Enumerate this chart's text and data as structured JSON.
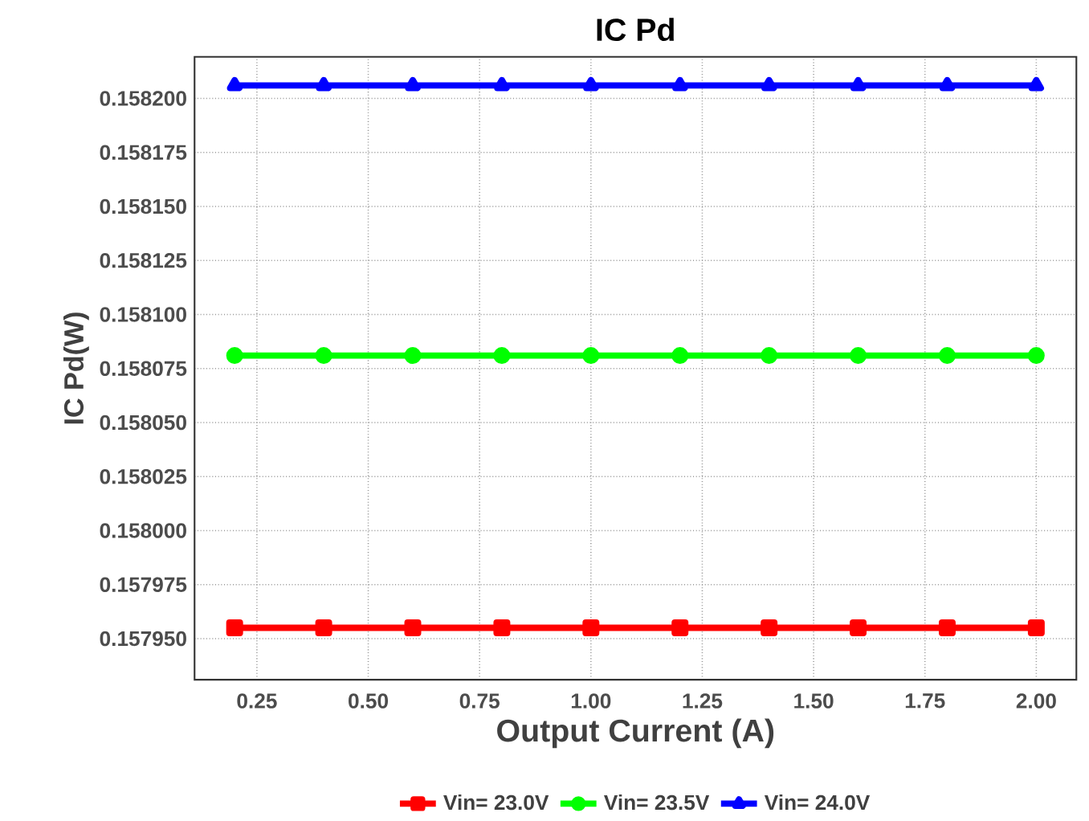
{
  "chart_data": {
    "type": "line",
    "title": "IC Pd",
    "xlabel": "Output Current (A)",
    "ylabel": "IC Pd(W)",
    "x": [
      0.2,
      0.4,
      0.6,
      0.8,
      1.0,
      1.2,
      1.4,
      1.6,
      1.8,
      2.0
    ],
    "series": [
      {
        "name": "Vin= 23.0V",
        "color": "#ff0000",
        "marker": "square",
        "values": [
          0.157955,
          0.157955,
          0.157955,
          0.157955,
          0.157955,
          0.157955,
          0.157955,
          0.157955,
          0.157955,
          0.157955
        ]
      },
      {
        "name": "Vin= 23.5V",
        "color": "#00ff00",
        "marker": "circle",
        "values": [
          0.158081,
          0.158081,
          0.158081,
          0.158081,
          0.158081,
          0.158081,
          0.158081,
          0.158081,
          0.158081,
          0.158081
        ]
      },
      {
        "name": "Vin= 24.0V",
        "color": "#0000ff",
        "marker": "triangle",
        "values": [
          0.158206,
          0.158206,
          0.158206,
          0.158206,
          0.158206,
          0.158206,
          0.158206,
          0.158206,
          0.158206,
          0.158206
        ]
      }
    ],
    "xlim": [
      0.11,
      2.09
    ],
    "ylim": [
      0.157931,
      0.1582192
    ],
    "xticks": [
      0.25,
      {
        "value": 0.5,
        "label": "0.50"
      },
      0.75,
      {
        "value": 1.0,
        "label": "1.00"
      },
      1.25,
      {
        "value": 1.5,
        "label": "1.50"
      },
      1.75,
      {
        "value": 2.0,
        "label": "2.00"
      }
    ],
    "yticks": [
      {
        "value": 0.15795,
        "label": "0.157950"
      },
      {
        "value": 0.157975,
        "label": "0.157975"
      },
      {
        "value": 0.158,
        "label": "0.158000"
      },
      {
        "value": 0.158025,
        "label": "0.158025"
      },
      {
        "value": 0.15805,
        "label": "0.158050"
      },
      {
        "value": 0.158075,
        "label": "0.158075"
      },
      {
        "value": 0.1581,
        "label": "0.158100"
      },
      {
        "value": 0.158125,
        "label": "0.158125"
      },
      {
        "value": 0.15815,
        "label": "0.158150"
      },
      {
        "value": 0.158175,
        "label": "0.158175"
      },
      {
        "value": 0.1582,
        "label": "0.158200"
      }
    ],
    "grid": true,
    "legend": "bottom",
    "line_style": "solid"
  }
}
